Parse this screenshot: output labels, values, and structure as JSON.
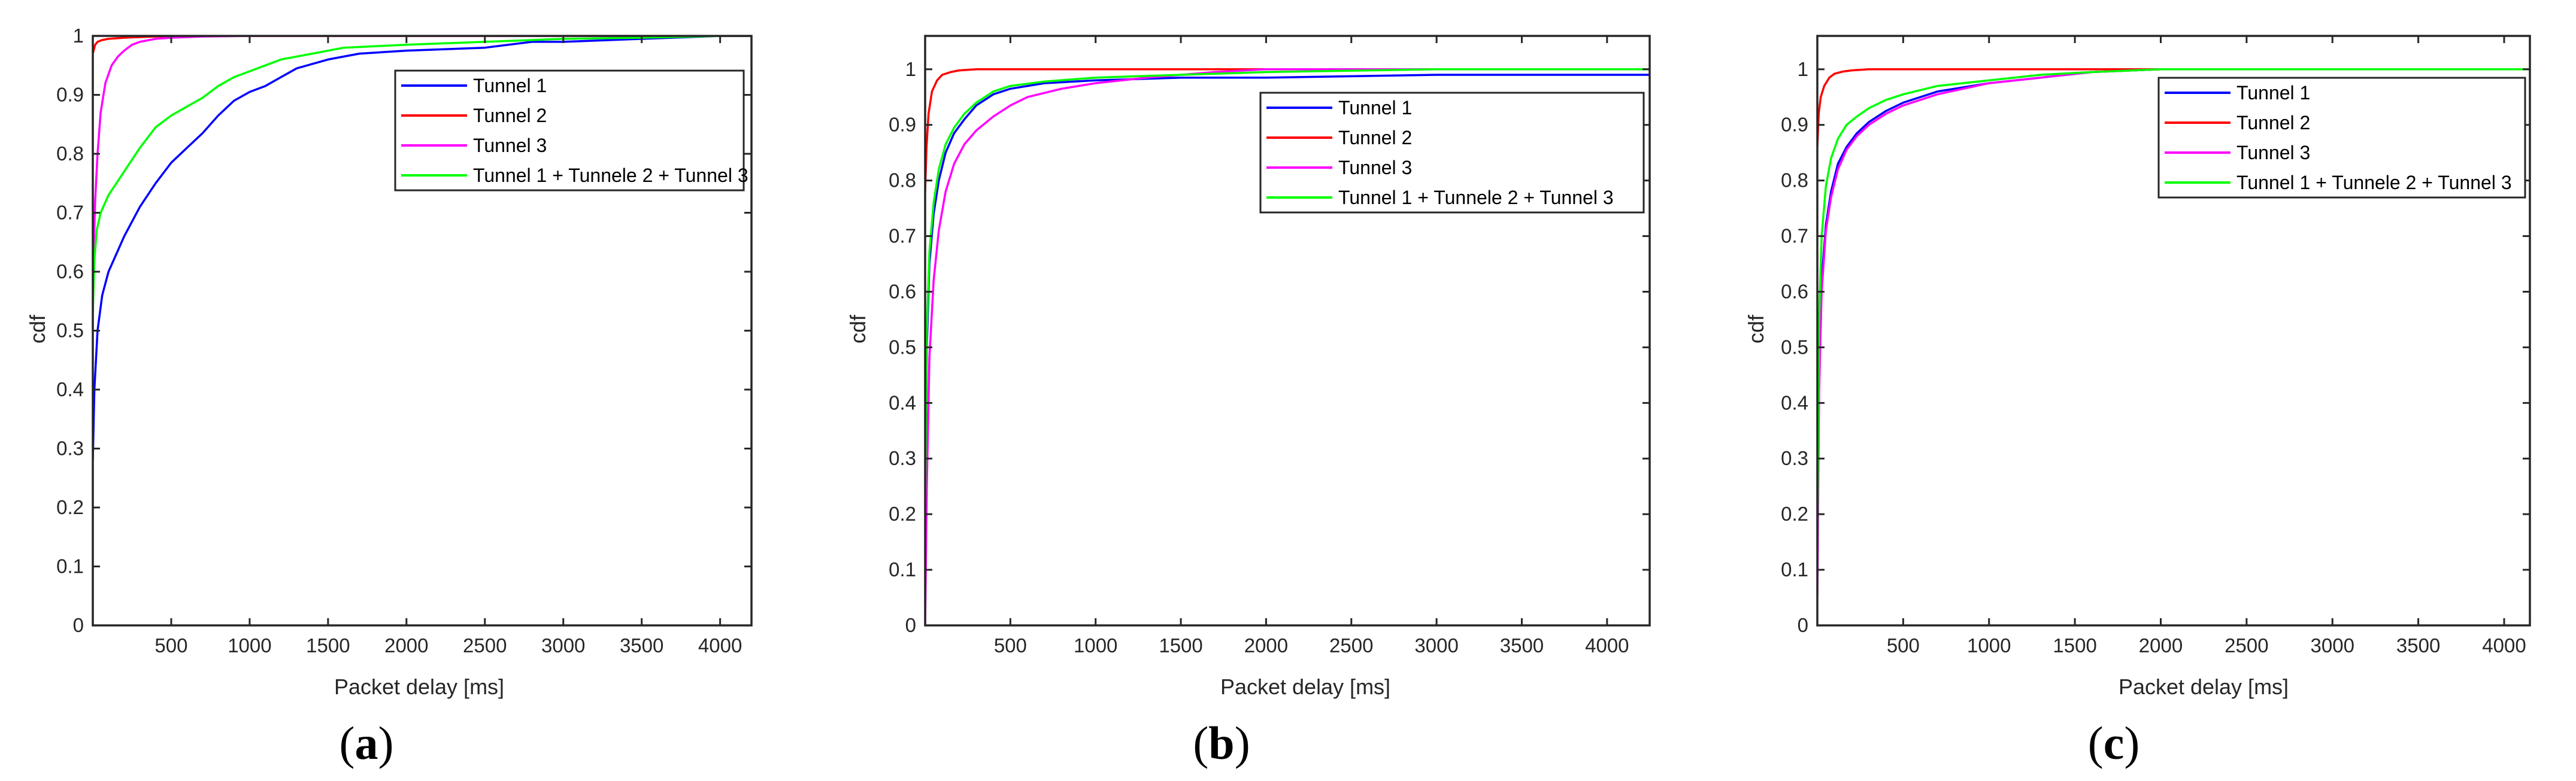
{
  "chart_data": [
    {
      "type": "line",
      "panel": "a",
      "caption_letter": "a",
      "xlabel": "Packet delay [ms]",
      "ylabel": "cdf",
      "xlim": [
        0,
        4200
      ],
      "ylim": [
        0,
        1
      ],
      "xticks": [
        500,
        1000,
        1500,
        2000,
        2500,
        3000,
        3500,
        4000
      ],
      "yticks": [
        0,
        0.1,
        0.2,
        0.3,
        0.4,
        0.5,
        0.6,
        0.7,
        0.8,
        0.9,
        1
      ],
      "xtick_labels": [
        "500",
        "1000",
        "1500",
        "2000",
        "2500",
        "3000",
        "3500",
        "4000"
      ],
      "ytick_labels": [
        "0",
        "0.1",
        "0.2",
        "0.3",
        "0.4",
        "0.5",
        "0.6",
        "0.7",
        "0.8",
        "0.9",
        "1"
      ],
      "legend_position": "top-right",
      "series": [
        {
          "name": "Tunnel 1",
          "color": "#0000ff",
          "x": [
            0,
            10,
            30,
            60,
            100,
            150,
            200,
            300,
            400,
            500,
            600,
            700,
            800,
            900,
            1000,
            1100,
            1200,
            1300,
            1500,
            1700,
            2000,
            2500,
            2800,
            3000,
            3500,
            4000,
            4200
          ],
          "y": [
            0.28,
            0.4,
            0.5,
            0.56,
            0.6,
            0.63,
            0.66,
            0.71,
            0.75,
            0.785,
            0.81,
            0.835,
            0.865,
            0.89,
            0.905,
            0.915,
            0.93,
            0.945,
            0.96,
            0.97,
            0.975,
            0.98,
            0.99,
            0.99,
            0.995,
            1.0,
            1.0
          ]
        },
        {
          "name": "Tunnel 2",
          "color": "#ff0000",
          "x": [
            0,
            5,
            15,
            30,
            60,
            100,
            200,
            400,
            600,
            1000,
            2000,
            3000,
            4200
          ],
          "y": [
            0.97,
            0.975,
            0.985,
            0.99,
            0.993,
            0.995,
            0.997,
            0.999,
            1.0,
            1.0,
            1.0,
            1.0,
            1.0
          ]
        },
        {
          "name": "Tunnel 3",
          "color": "#ff00ff",
          "x": [
            0,
            15,
            30,
            50,
            80,
            120,
            160,
            200,
            250,
            300,
            400,
            500,
            700,
            1000,
            2000,
            4200
          ],
          "y": [
            0.58,
            0.72,
            0.8,
            0.87,
            0.92,
            0.95,
            0.965,
            0.975,
            0.985,
            0.99,
            0.995,
            0.997,
            0.999,
            1.0,
            1.0,
            1.0
          ]
        },
        {
          "name": "Tunnel 1 + Tunnele 2 + Tunnel 3",
          "color": "#00ff00",
          "x": [
            0,
            10,
            25,
            50,
            100,
            150,
            200,
            300,
            400,
            500,
            600,
            700,
            800,
            900,
            1000,
            1100,
            1200,
            1400,
            1600,
            2000,
            2500,
            3000,
            3500,
            4000,
            4200
          ],
          "y": [
            0.53,
            0.62,
            0.67,
            0.7,
            0.73,
            0.75,
            0.77,
            0.81,
            0.845,
            0.865,
            0.88,
            0.895,
            0.915,
            0.93,
            0.94,
            0.95,
            0.96,
            0.97,
            0.98,
            0.985,
            0.99,
            0.995,
            0.997,
            1.0,
            1.0
          ]
        }
      ]
    },
    {
      "type": "line",
      "panel": "b",
      "caption_letter": "b",
      "xlabel": "Packet delay [ms]",
      "ylabel": "cdf",
      "xlim": [
        0,
        4250
      ],
      "ylim": [
        0,
        1.06
      ],
      "xticks": [
        500,
        1000,
        1500,
        2000,
        2500,
        3000,
        3500,
        4000
      ],
      "yticks": [
        0,
        0.1,
        0.2,
        0.3,
        0.4,
        0.5,
        0.6,
        0.7,
        0.8,
        0.9,
        1
      ],
      "xtick_labels": [
        "500",
        "1000",
        "1500",
        "2000",
        "2500",
        "3000",
        "3500",
        "4000"
      ],
      "ytick_labels": [
        "0",
        "0.1",
        "0.2",
        "0.3",
        "0.4",
        "0.5",
        "0.6",
        "0.7",
        "0.8",
        "0.9",
        "1"
      ],
      "legend_position": "top-right",
      "series": [
        {
          "name": "Tunnel 1",
          "color": "#0000ff",
          "x": [
            0,
            10,
            25,
            50,
            80,
            120,
            170,
            230,
            300,
            400,
            500,
            700,
            1000,
            1500,
            2000,
            3000,
            4250
          ],
          "y": [
            0.18,
            0.5,
            0.65,
            0.74,
            0.8,
            0.85,
            0.885,
            0.91,
            0.935,
            0.955,
            0.965,
            0.975,
            0.98,
            0.985,
            0.985,
            0.99,
            0.99
          ]
        },
        {
          "name": "Tunnel 2",
          "color": "#ff0000",
          "x": [
            0,
            8,
            20,
            40,
            70,
            100,
            150,
            200,
            300,
            500,
            1000,
            4250
          ],
          "y": [
            0.78,
            0.86,
            0.92,
            0.96,
            0.98,
            0.99,
            0.995,
            0.998,
            1.0,
            1.0,
            1.0,
            1.0
          ]
        },
        {
          "name": "Tunnel 3",
          "color": "#ff00ff",
          "x": [
            0,
            10,
            25,
            50,
            80,
            120,
            170,
            230,
            300,
            400,
            500,
            600,
            800,
            1000,
            1300,
            1700,
            2000,
            4250
          ],
          "y": [
            0.0,
            0.25,
            0.48,
            0.62,
            0.71,
            0.78,
            0.83,
            0.865,
            0.89,
            0.915,
            0.935,
            0.95,
            0.965,
            0.975,
            0.985,
            0.995,
            1.0,
            1.0
          ]
        },
        {
          "name": "Tunnel 1 + Tunnele 2 + Tunnel 3",
          "color": "#00ff00",
          "x": [
            0,
            10,
            25,
            50,
            80,
            120,
            170,
            230,
            300,
            400,
            500,
            700,
            1000,
            1500,
            2000,
            3000,
            4250
          ],
          "y": [
            0.2,
            0.53,
            0.67,
            0.76,
            0.82,
            0.865,
            0.895,
            0.92,
            0.94,
            0.96,
            0.97,
            0.978,
            0.985,
            0.99,
            0.995,
            1.0,
            1.0
          ]
        }
      ]
    },
    {
      "type": "line",
      "panel": "c",
      "caption_letter": "c",
      "xlabel": "Packet delay [ms]",
      "ylabel": "cdf",
      "xlim": [
        0,
        4150
      ],
      "ylim": [
        0,
        1.06
      ],
      "xticks": [
        500,
        1000,
        1500,
        2000,
        2500,
        3000,
        3500,
        4000
      ],
      "yticks": [
        0,
        0.1,
        0.2,
        0.3,
        0.4,
        0.5,
        0.6,
        0.7,
        0.8,
        0.9,
        1
      ],
      "xtick_labels": [
        "500",
        "1000",
        "1500",
        "2000",
        "2500",
        "3000",
        "3500",
        "4000"
      ],
      "ytick_labels": [
        "0",
        "0.1",
        "0.2",
        "0.3",
        "0.4",
        "0.5",
        "0.6",
        "0.7",
        "0.8",
        "0.9",
        "1"
      ],
      "legend_position": "top-right",
      "series": [
        {
          "name": "Tunnel 1",
          "color": "#0000ff",
          "x": [
            0,
            10,
            25,
            50,
            80,
            120,
            170,
            230,
            300,
            400,
            500,
            700,
            1000,
            1300,
            1600,
            2000,
            2500,
            4150
          ],
          "y": [
            0.1,
            0.45,
            0.62,
            0.72,
            0.78,
            0.83,
            0.86,
            0.885,
            0.905,
            0.925,
            0.94,
            0.96,
            0.975,
            0.985,
            0.995,
            1.0,
            1.0,
            1.0
          ]
        },
        {
          "name": "Tunnel 2",
          "color": "#ff0000",
          "x": [
            0,
            8,
            20,
            40,
            70,
            100,
            150,
            200,
            300,
            500,
            1000,
            4150
          ],
          "y": [
            0.86,
            0.92,
            0.95,
            0.97,
            0.985,
            0.992,
            0.996,
            0.998,
            1.0,
            1.0,
            1.0,
            1.0
          ]
        },
        {
          "name": "Tunnel 3",
          "color": "#ff00ff",
          "x": [
            0,
            10,
            25,
            50,
            80,
            120,
            170,
            230,
            300,
            400,
            500,
            700,
            1000,
            1300,
            1600,
            2000,
            4150
          ],
          "y": [
            0.05,
            0.42,
            0.6,
            0.71,
            0.77,
            0.82,
            0.855,
            0.88,
            0.9,
            0.92,
            0.935,
            0.955,
            0.975,
            0.985,
            0.995,
            1.0,
            1.0
          ]
        },
        {
          "name": "Tunnel 1 + Tunnele 2 + Tunnel 3",
          "color": "#00ff00",
          "x": [
            0,
            10,
            25,
            50,
            80,
            120,
            170,
            230,
            300,
            400,
            500,
            700,
            1000,
            1300,
            1600,
            2000,
            4150
          ],
          "y": [
            0.15,
            0.55,
            0.7,
            0.79,
            0.84,
            0.875,
            0.9,
            0.915,
            0.93,
            0.945,
            0.955,
            0.97,
            0.98,
            0.99,
            0.995,
            1.0,
            1.0
          ]
        }
      ]
    }
  ]
}
